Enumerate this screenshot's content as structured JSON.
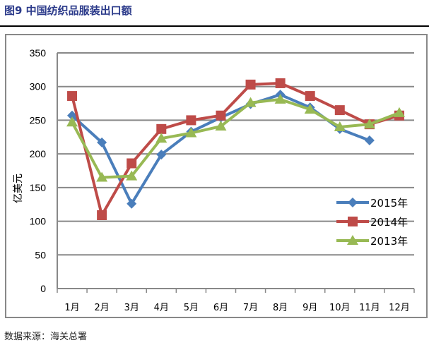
{
  "title": "图9 中国纺织品服装出口额",
  "source": "数据来源：海关总署",
  "chart_data": {
    "type": "line",
    "title": "",
    "xlabel": "",
    "ylabel": "亿美元",
    "ylim": [
      0,
      350
    ],
    "yticks": [
      0,
      50,
      100,
      150,
      200,
      250,
      300,
      350
    ],
    "grid": true,
    "legend": "bottom-right",
    "categories": [
      "1月",
      "2月",
      "3月",
      "4月",
      "5月",
      "6月",
      "7月",
      "8月",
      "9月",
      "10月",
      "11月",
      "12月"
    ],
    "series": [
      {
        "name": "2015年",
        "color": "#4a7ebb",
        "marker": "diamond",
        "values": [
          257,
          217,
          126,
          199,
          233,
          254,
          274,
          288,
          269,
          237,
          220,
          null
        ]
      },
      {
        "name": "2014年",
        "color": "#be4b48",
        "marker": "square",
        "values": [
          286,
          109,
          186,
          237,
          250,
          257,
          303,
          305,
          286,
          265,
          244,
          257
        ]
      },
      {
        "name": "2013年",
        "color": "#98b954",
        "marker": "triangle",
        "values": [
          247,
          165,
          167,
          223,
          231,
          241,
          276,
          281,
          266,
          240,
          244,
          261
        ]
      }
    ]
  }
}
